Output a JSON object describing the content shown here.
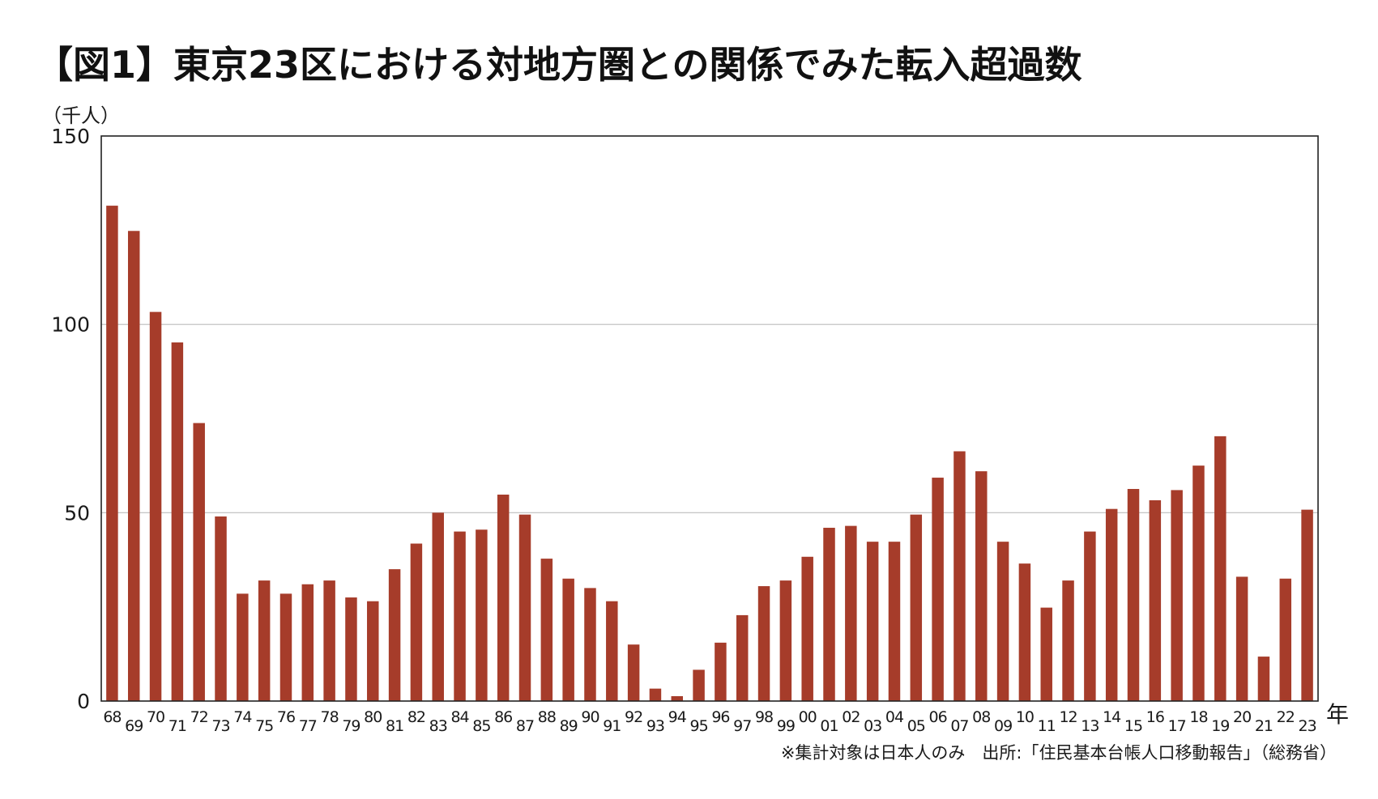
{
  "chart_data": {
    "type": "bar",
    "title": "【図1】東京23区における対地方圏との関係でみた転入超過数",
    "ylabel": "（千人）",
    "xlabel": "年",
    "ylim": [
      0,
      150
    ],
    "yticks": [
      "0",
      "50",
      "100",
      "150"
    ],
    "grid": true,
    "bar_color": "#A63C2A",
    "categories": [
      "68",
      "69",
      "70",
      "71",
      "72",
      "73",
      "74",
      "75",
      "76",
      "77",
      "78",
      "79",
      "80",
      "81",
      "82",
      "83",
      "84",
      "85",
      "86",
      "87",
      "88",
      "89",
      "90",
      "91",
      "92",
      "93",
      "94",
      "95",
      "96",
      "97",
      "98",
      "99",
      "00",
      "01",
      "02",
      "03",
      "04",
      "05",
      "06",
      "07",
      "08",
      "09",
      "10",
      "11",
      "12",
      "13",
      "14",
      "15",
      "16",
      "17",
      "18",
      "19",
      "20",
      "21",
      "22",
      "23"
    ],
    "values": [
      131.5,
      124.8,
      103.3,
      95.2,
      73.8,
      49.0,
      28.5,
      32.0,
      28.5,
      31.0,
      32.0,
      27.5,
      26.5,
      35.0,
      41.8,
      50.0,
      45.0,
      45.5,
      54.8,
      49.5,
      37.8,
      32.5,
      30.0,
      26.5,
      15.0,
      3.3,
      1.3,
      8.3,
      15.5,
      22.8,
      30.5,
      32.0,
      38.3,
      46.0,
      46.5,
      42.3,
      42.3,
      49.5,
      59.3,
      66.3,
      61.0,
      42.3,
      36.5,
      24.8,
      32.0,
      45.0,
      51.0,
      56.3,
      53.3,
      56.0,
      62.5,
      70.3,
      33.0,
      11.8,
      32.5,
      50.8
    ],
    "footnote": "※集計対象は日本人のみ　出所:「住民基本台帳人口移動報告」（総務省）"
  }
}
